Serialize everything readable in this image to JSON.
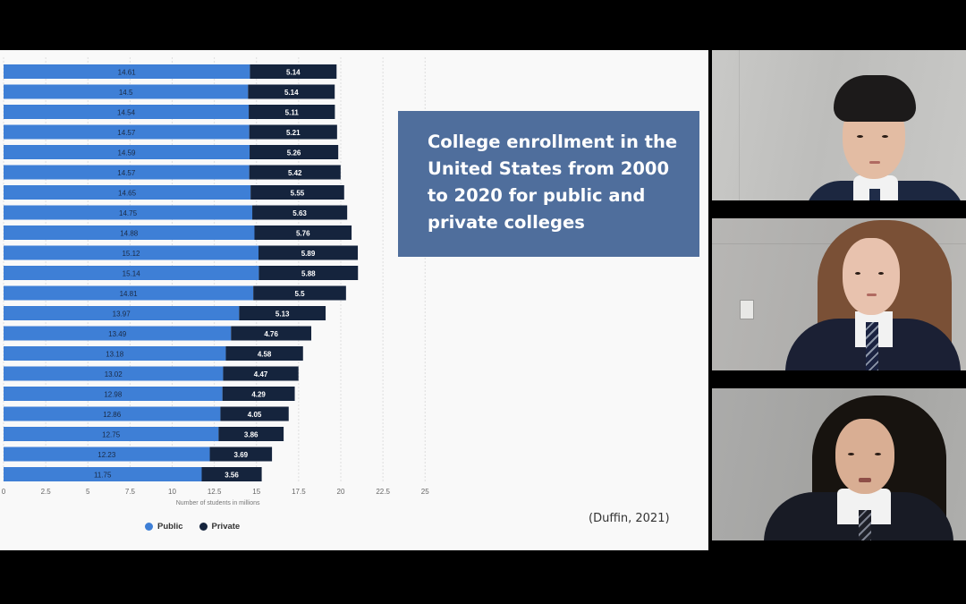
{
  "slide": {
    "title": "College enrollment in the United States from 2000 to 2020 for public and private colleges",
    "citation": "(Duffin, 2021)",
    "legend": {
      "public_label": "Public",
      "private_label": "Private"
    }
  },
  "colors": {
    "public": "#3e7fd6",
    "private": "#15243d",
    "title_box": "#4f6e9c"
  },
  "chart_data": {
    "type": "bar",
    "orientation": "horizontal",
    "stacked": true,
    "xlabel": "Number of students in millions",
    "xlim": [
      0,
      25
    ],
    "xticks": [
      "0",
      "2.5",
      "5",
      "7.5",
      "10",
      "12.5",
      "15",
      "17.5",
      "20",
      "22.5",
      "25"
    ],
    "grid": true,
    "legend_position": "bottom",
    "series": [
      {
        "name": "Public",
        "values": [
          14.61,
          14.5,
          14.54,
          14.57,
          14.59,
          14.57,
          14.65,
          14.75,
          14.88,
          15.12,
          15.14,
          14.81,
          13.97,
          13.49,
          13.18,
          13.02,
          12.98,
          12.86,
          12.75,
          12.23,
          11.75
        ]
      },
      {
        "name": "Private",
        "values": [
          5.14,
          5.14,
          5.11,
          5.21,
          5.26,
          5.42,
          5.55,
          5.63,
          5.76,
          5.89,
          5.88,
          5.5,
          5.13,
          4.76,
          4.58,
          4.47,
          4.29,
          4.05,
          3.86,
          3.69,
          3.56
        ]
      }
    ],
    "labels": {
      "Public": [
        "14.61",
        "14.5",
        "14.54",
        "14.57",
        "14.59",
        "14.57",
        "14.65",
        "14.75",
        "14.88",
        "15.12",
        "15.14",
        "14.81",
        "13.97",
        "13.49",
        "13.18",
        "13.02",
        "12.98",
        "12.86",
        "12.75",
        "12.23",
        "11.75"
      ],
      "Private": [
        "5.14",
        "5.14",
        "5.11",
        "5.21",
        "5.26",
        "5.42",
        "5.55",
        "5.63",
        "5.76",
        "5.89",
        "5.88",
        "5.5",
        "5.13",
        "4.76",
        "4.58",
        "4.47",
        "4.29",
        "4.05",
        "3.86",
        "3.69",
        "3.56"
      ]
    }
  },
  "participants": [
    {
      "hair": "short-dark",
      "shirt_style": "tie-suit"
    },
    {
      "hair": "long-light-brown",
      "shirt_style": "tie-blazer"
    },
    {
      "hair": "long-dark",
      "shirt_style": "tie-blazer"
    }
  ]
}
